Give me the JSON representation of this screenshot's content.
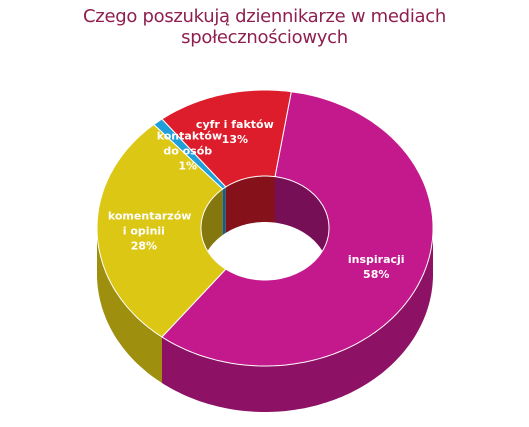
{
  "chart_data": {
    "type": "donut",
    "title": "Czego poszukują dziennikarze w mediach społecznościowych",
    "categories": [
      "inspiracji",
      "komentarzów i opinii",
      "kontaktów do osób",
      "cyfr i faktów"
    ],
    "values": [
      58,
      28,
      1,
      13
    ],
    "value_labels": [
      "58%",
      "28%",
      "1%",
      "13%"
    ],
    "colors": [
      "#c4198d",
      "#dcc715",
      "#1f9fd9",
      "#dd1d2b"
    ]
  }
}
